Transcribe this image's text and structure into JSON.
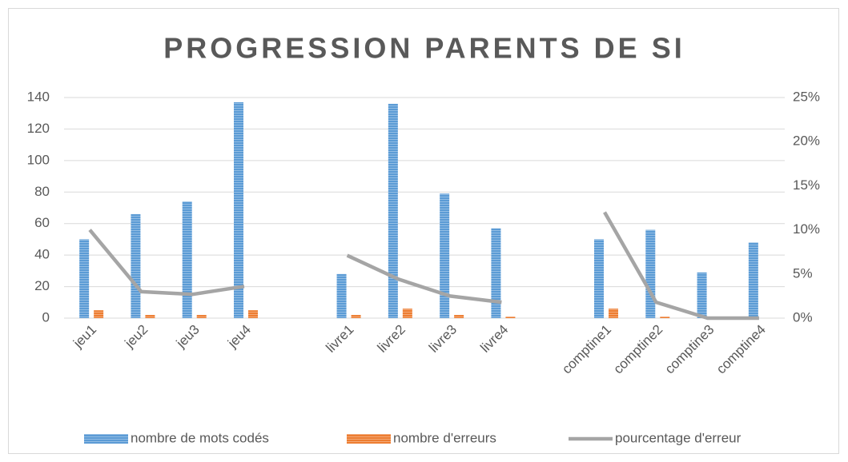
{
  "chart_data": {
    "type": "bar_line",
    "title": "PROGRESSION PARENTS DE SI",
    "categories": [
      "jeu1",
      "jeu2",
      "jeu3",
      "jeu4",
      null,
      "livre1",
      "livre2",
      "livre3",
      "livre4",
      null,
      "comptine1",
      "comptine2",
      "comptine3",
      "comptine4"
    ],
    "series": [
      {
        "name": "nombre de mots codés",
        "type": "bar",
        "color": "#5b9bd5",
        "values": [
          50,
          66,
          74,
          137,
          null,
          28,
          136,
          79,
          57,
          null,
          50,
          56,
          29,
          48
        ]
      },
      {
        "name": "nombre d'erreurs",
        "type": "bar",
        "color": "#ed7d31",
        "values": [
          5,
          2,
          2,
          5,
          null,
          2,
          6,
          2,
          1,
          null,
          6,
          1,
          0,
          0
        ]
      },
      {
        "name": "pourcentage d'erreur",
        "type": "line",
        "axis": "y2",
        "color": "#a5a5a5",
        "values": [
          10,
          3,
          2.7,
          3.6,
          null,
          7.1,
          4.4,
          2.5,
          1.8,
          null,
          12,
          1.8,
          0,
          0
        ]
      }
    ],
    "ylim": [
      0,
      140
    ],
    "yticks": [
      0,
      20,
      40,
      60,
      80,
      100,
      120,
      140
    ],
    "y2lim": [
      0,
      25
    ],
    "y2ticks": [
      {
        "value": 0,
        "label": "0%"
      },
      {
        "value": 5,
        "label": "5%"
      },
      {
        "value": 10,
        "label": "10%"
      },
      {
        "value": 15,
        "label": "15%"
      },
      {
        "value": 20,
        "label": "20%"
      },
      {
        "value": 25,
        "label": "25%"
      }
    ],
    "grid": true,
    "legend": "bottom"
  }
}
